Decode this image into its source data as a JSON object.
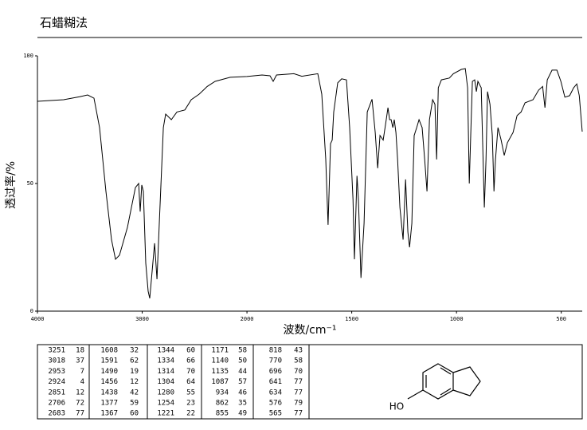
{
  "header": {
    "title": "石蜡糊法"
  },
  "chart_data": {
    "type": "line",
    "x": [
      4000,
      3750,
      3597,
      3521,
      3460,
      3407,
      3346,
      3293,
      3255,
      3217,
      3141,
      3065,
      3034,
      3019,
      3004,
      2989,
      2966,
      2943,
      2928,
      2905,
      2882,
      2859,
      2837,
      2798,
      2776,
      2722,
      2669,
      2593,
      2532,
      2456,
      2380,
      2304,
      2160,
      2000,
      1928,
      1890,
      1875,
      1859,
      1776,
      1738,
      1662,
      1643,
      1624,
      1613,
      1601,
      1593,
      1586,
      1567,
      1548,
      1525,
      1510,
      1494,
      1487,
      1475,
      1468,
      1456,
      1441,
      1426,
      1403,
      1388,
      1376,
      1365,
      1350,
      1338,
      1327,
      1319,
      1312,
      1304,
      1297,
      1289,
      1281,
      1270,
      1255,
      1243,
      1232,
      1224,
      1213,
      1202,
      1190,
      1179,
      1164,
      1152,
      1141,
      1129,
      1114,
      1103,
      1095,
      1087,
      1072,
      1034,
      1015,
      977,
      958,
      947,
      939,
      932,
      924,
      913,
      905,
      898,
      882,
      867,
      859,
      852,
      840,
      829,
      821,
      814,
      802,
      787,
      772,
      757,
      730,
      711,
      692,
      673,
      635,
      608,
      589,
      578,
      567,
      544,
      521,
      502,
      483,
      460,
      441,
      426,
      414,
      400
    ],
    "values": [
      82.2,
      82.8,
      84,
      84.7,
      83.4,
      71.9,
      46.9,
      28,
      20.3,
      21.9,
      32.8,
      48.4,
      50,
      39,
      49.4,
      46.9,
      18.8,
      7.8,
      5,
      15.6,
      26.6,
      12.5,
      34.4,
      71.9,
      77.2,
      75,
      78,
      78.8,
      82.8,
      85,
      88,
      90,
      91.6,
      91.9,
      92.5,
      92.2,
      90,
      92.5,
      93,
      92,
      93,
      85,
      59.4,
      33.8,
      65.6,
      67,
      78,
      89.4,
      91,
      90.6,
      71.9,
      43.8,
      20.3,
      53,
      43.8,
      13,
      34.4,
      78,
      83,
      70,
      56,
      68.8,
      67,
      73.4,
      79.7,
      75,
      75,
      71.9,
      75,
      70,
      59.4,
      40.6,
      28,
      51.6,
      31,
      25,
      34.4,
      68.8,
      71.9,
      75,
      71.9,
      59.4,
      46.9,
      75,
      82.8,
      81,
      59.4,
      87.5,
      90.6,
      91.3,
      93,
      94.7,
      95,
      87.5,
      50,
      68.8,
      90,
      90.6,
      86,
      90,
      87.5,
      40.6,
      59.4,
      86,
      81,
      68.8,
      46.9,
      59.4,
      71.9,
      67,
      61,
      66,
      70,
      76.6,
      78,
      81.6,
      82.8,
      86.6,
      88,
      79.7,
      90.6,
      94.4,
      94.4,
      90,
      83.8,
      84.4,
      87.5,
      89,
      84.4,
      70.3
    ],
    "color": "#000000",
    "xlim": [
      4000,
      400
    ],
    "xbreak": 2000,
    "xticks": [
      4000,
      3000,
      2000,
      1500,
      1000,
      500
    ],
    "ylim": [
      0,
      100
    ],
    "yticks": [
      0,
      50,
      100
    ],
    "xlabel": "波数/cm⁻¹",
    "ylabel": "透过率/%"
  },
  "table": {
    "groups": [
      [
        [
          3251,
          18
        ],
        [
          3018,
          37
        ],
        [
          2953,
          7
        ],
        [
          2924,
          4
        ],
        [
          2851,
          12
        ],
        [
          2706,
          72
        ],
        [
          2683,
          77
        ]
      ],
      [
        [
          1608,
          32
        ],
        [
          1591,
          62
        ],
        [
          1490,
          19
        ],
        [
          1456,
          12
        ],
        [
          1438,
          42
        ],
        [
          1377,
          59
        ],
        [
          1367,
          60
        ]
      ],
      [
        [
          1344,
          60
        ],
        [
          1334,
          66
        ],
        [
          1314,
          70
        ],
        [
          1304,
          64
        ],
        [
          1280,
          55
        ],
        [
          1254,
          23
        ],
        [
          1221,
          22
        ]
      ],
      [
        [
          1171,
          58
        ],
        [
          1140,
          50
        ],
        [
          1135,
          44
        ],
        [
          1087,
          57
        ],
        [
          934,
          46
        ],
        [
          862,
          35
        ],
        [
          855,
          49
        ]
      ],
      [
        [
          818,
          43
        ],
        [
          770,
          58
        ],
        [
          696,
          70
        ],
        [
          641,
          77
        ],
        [
          634,
          77
        ],
        [
          576,
          79
        ],
        [
          565,
          77
        ]
      ]
    ]
  },
  "structure": {
    "label": "HO"
  }
}
